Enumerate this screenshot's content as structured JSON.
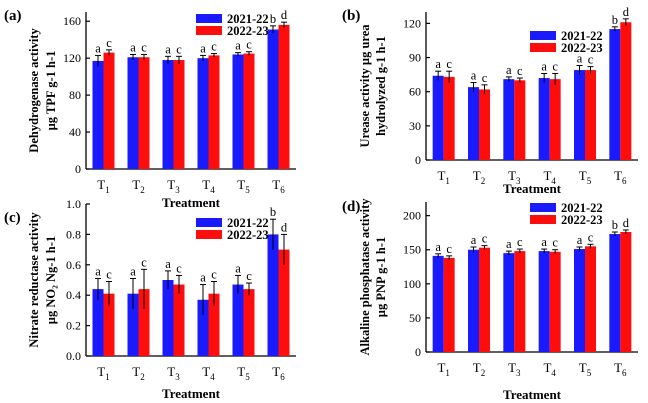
{
  "figure": {
    "colors": {
      "series1": "#1a1aff",
      "series2": "#ff0d0d",
      "axis": "#000000"
    }
  },
  "chart_data": [
    {
      "panel": "(a)",
      "type": "bar",
      "ylabel_lines": [
        "Dehydrogenase activity",
        "µg  TPF g-1 h-1"
      ],
      "xlabel": "Treatment",
      "categories": [
        "T",
        "T",
        "T",
        "T",
        "T",
        "T"
      ],
      "category_subs": [
        "1",
        "2",
        "3",
        "4",
        "5",
        "6"
      ],
      "ylim": [
        0,
        170
      ],
      "yticks": [
        0,
        40,
        80,
        120,
        160
      ],
      "legend_position": "top-right",
      "series": [
        {
          "name": "2021-22",
          "values": [
            117,
            121,
            118,
            120,
            124,
            151
          ],
          "errors": [
            6,
            3,
            4,
            3,
            2,
            4
          ],
          "labels": [
            "a",
            "a",
            "a",
            "a",
            "a",
            "b"
          ]
        },
        {
          "name": "2022-23",
          "values": [
            126,
            121,
            118,
            123,
            125,
            156
          ],
          "errors": [
            3,
            3,
            4,
            2,
            2,
            3
          ],
          "labels": [
            "c",
            "c",
            "c",
            "c",
            "c",
            "d"
          ]
        }
      ]
    },
    {
      "panel": "(b)",
      "type": "bar",
      "ylabel_lines": [
        "Urease activity µg urea",
        "hydrolyzed g-1 h-1"
      ],
      "xlabel": "Treatment",
      "categories": [
        "T",
        "T",
        "T",
        "T",
        "T",
        "T"
      ],
      "category_subs": [
        "1",
        "2",
        "3",
        "4",
        "5",
        "6"
      ],
      "ylim": [
        0,
        130
      ],
      "yticks": [
        0,
        30,
        60,
        90,
        120
      ],
      "legend_position": "top-right",
      "series": [
        {
          "name": "2021-22",
          "values": [
            74,
            64,
            71,
            72,
            79,
            115
          ],
          "errors": [
            4,
            4,
            2,
            4,
            4,
            2
          ],
          "labels": [
            "a",
            "a",
            "a",
            "a",
            "a",
            "b"
          ]
        },
        {
          "name": "2022-23",
          "values": [
            73,
            62,
            70,
            71,
            79,
            121
          ],
          "errors": [
            5,
            4,
            2,
            5,
            3,
            3
          ],
          "labels": [
            "c",
            "c",
            "c",
            "c",
            "c",
            "d"
          ]
        }
      ]
    },
    {
      "panel": "(c)",
      "type": "bar",
      "ylabel_lines": [
        "Nitrate reductase activity",
        "µg NO₂ Ng-1 h-1"
      ],
      "xlabel": "Treatment",
      "categories": [
        "T",
        "T",
        "T",
        "T",
        "T",
        "T"
      ],
      "category_subs": [
        "1",
        "2",
        "3",
        "4",
        "5",
        "6"
      ],
      "ylim": [
        0,
        1.0
      ],
      "yticks": [
        0.0,
        0.2,
        0.4,
        0.6,
        0.8,
        1.0
      ],
      "legend_position": "top-right",
      "series": [
        {
          "name": "2021-22",
          "values": [
            0.44,
            0.41,
            0.5,
            0.37,
            0.47,
            0.8
          ],
          "errors": [
            0.07,
            0.1,
            0.06,
            0.1,
            0.06,
            0.1
          ],
          "labels": [
            "a",
            "a",
            "a",
            "a",
            "a",
            "b"
          ]
        },
        {
          "name": "2022-23",
          "values": [
            0.41,
            0.44,
            0.47,
            0.41,
            0.44,
            0.7
          ],
          "errors": [
            0.08,
            0.13,
            0.06,
            0.08,
            0.04,
            0.1
          ],
          "labels": [
            "c",
            "c",
            "c",
            "c",
            "c",
            "d"
          ]
        }
      ]
    },
    {
      "panel": "(d)",
      "type": "bar",
      "ylabel_lines": [
        "Alkaline phosphatase activity",
        "µg PNP g-1 h-1"
      ],
      "xlabel": "Treatment",
      "categories": [
        "T",
        "T",
        "T",
        "T",
        "T",
        "T"
      ],
      "category_subs": [
        "1",
        "2",
        "3",
        "4",
        "5",
        "6"
      ],
      "ylim": [
        0,
        220
      ],
      "yticks": [
        0,
        50,
        100,
        150,
        200
      ],
      "legend_position": "top-right",
      "series": [
        {
          "name": "2021-22",
          "values": [
            141,
            150,
            145,
            148,
            151,
            173
          ],
          "errors": [
            3,
            4,
            3,
            3,
            3,
            3
          ],
          "labels": [
            "a",
            "a",
            "a",
            "a",
            "a",
            "b"
          ]
        },
        {
          "name": "2022-23",
          "values": [
            138,
            153,
            148,
            147,
            155,
            176
          ],
          "errors": [
            3,
            3,
            3,
            3,
            3,
            3
          ],
          "labels": [
            "c",
            "c",
            "c",
            "c",
            "c",
            "d"
          ]
        }
      ]
    }
  ]
}
